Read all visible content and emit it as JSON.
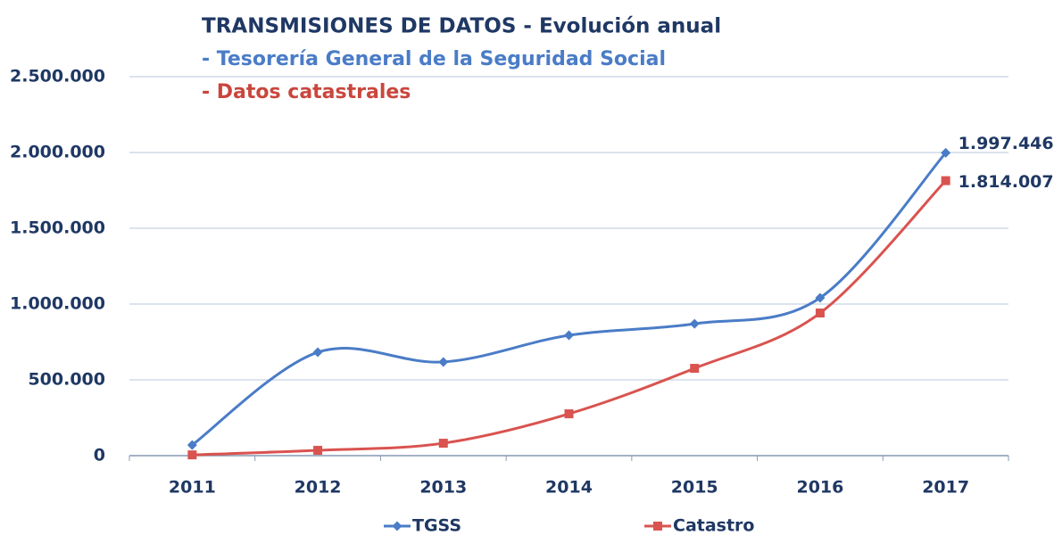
{
  "chart_data": {
    "type": "line",
    "title": "TRANSMISIONES DE DATOS - Evolución anual",
    "subtitle": [
      "- Tesorería General de la Seguridad Social",
      "- Datos catastrales"
    ],
    "categories": [
      "2011",
      "2012",
      "2013",
      "2014",
      "2015",
      "2016",
      "2017"
    ],
    "series": [
      {
        "name": "TGSS",
        "color": "#4a7cc7",
        "marker": "diamond",
        "values": [
          70000,
          682000,
          618000,
          794000,
          870000,
          1041000,
          1997446
        ],
        "value_labels": [
          null,
          null,
          null,
          null,
          null,
          null,
          "1.997.446"
        ]
      },
      {
        "name": "Catastro",
        "color": "#d9534f",
        "marker": "square",
        "values": [
          5000,
          35000,
          82000,
          276000,
          576000,
          941000,
          1814007
        ],
        "value_labels": [
          null,
          null,
          null,
          null,
          null,
          null,
          "1.814.007"
        ]
      }
    ],
    "ylim": [
      0,
      2500000
    ],
    "yticks": [
      0,
      {
        "value": 500000,
        "label": "500.000"
      },
      {
        "value": 1000000,
        "label": "1.000.000"
      },
      {
        "value": 1500000,
        "label": "1.500.000"
      },
      {
        "value": 2000000,
        "label": "2.000.000"
      },
      {
        "value": 2500000,
        "label": "2.500.000"
      }
    ],
    "grid": true,
    "smooth": true,
    "legend": "bottom"
  }
}
